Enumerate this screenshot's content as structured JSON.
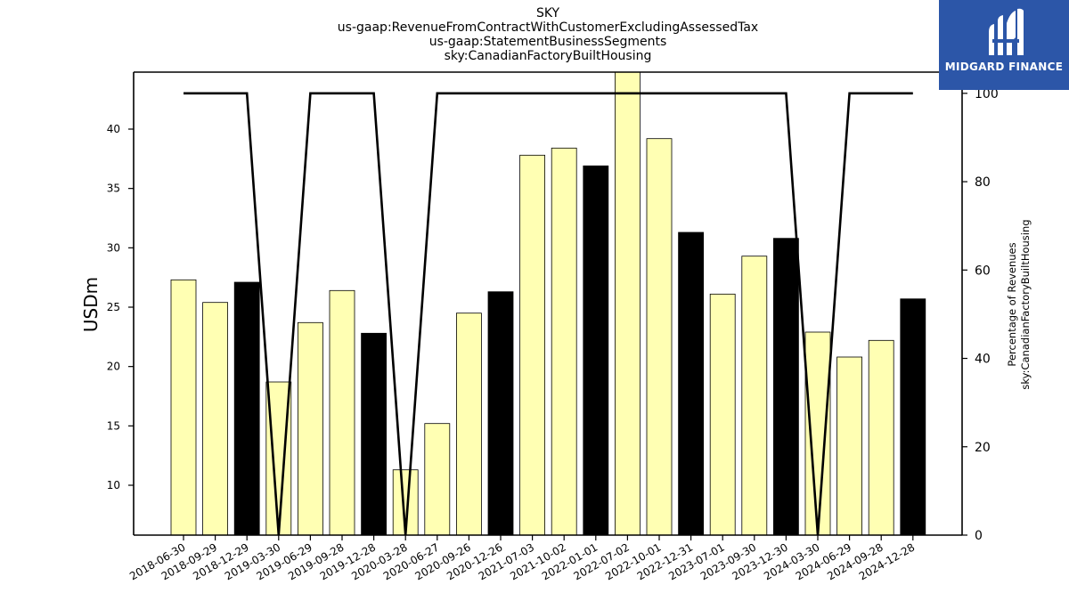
{
  "title_lines": [
    "SKY",
    "us-gaap:RevenueFromContractWithCustomerExcludingAssessedTax",
    "us-gaap:StatementBusinessSegments",
    "sky:CanadianFactoryBuiltHousing"
  ],
  "logo": {
    "text": "MIDGARD FINANCE",
    "background": "#2c56a8"
  },
  "chart_data": {
    "type": "bar",
    "categories": [
      "2018-06-30",
      "2018-09-29",
      "2018-12-29",
      "2019-03-30",
      "2019-06-29",
      "2019-09-28",
      "2019-12-28",
      "2020-03-28",
      "2020-06-27",
      "2020-09-26",
      "2020-12-26",
      "2021-07-03",
      "2021-10-02",
      "2022-01-01",
      "2022-07-02",
      "2022-10-01",
      "2022-12-31",
      "2023-07-01",
      "2023-09-30",
      "2023-12-30",
      "2024-03-30",
      "2024-06-29",
      "2024-09-28",
      "2024-12-28"
    ],
    "series": [
      {
        "type": "bar",
        "values": [
          27.3,
          25.4,
          27.1,
          18.7,
          23.7,
          26.4,
          22.8,
          11.3,
          15.2,
          24.5,
          26.3,
          37.8,
          38.4,
          36.9,
          44.8,
          39.2,
          31.3,
          26.1,
          29.3,
          30.8,
          22.9,
          20.8,
          22.2,
          25.7
        ],
        "highlight": [
          false,
          false,
          true,
          false,
          false,
          false,
          true,
          false,
          false,
          false,
          true,
          false,
          false,
          true,
          false,
          false,
          true,
          false,
          false,
          true,
          false,
          false,
          false,
          true
        ],
        "color": "#ffffb3",
        "highlight_color": "#000000"
      },
      {
        "type": "line",
        "axis": "right",
        "values": [
          100,
          100,
          100,
          0,
          100,
          100,
          100,
          0,
          100,
          100,
          100,
          100,
          100,
          100,
          100,
          100,
          100,
          100,
          100,
          100,
          0,
          100,
          100,
          100
        ],
        "color": "#000000"
      }
    ],
    "ylabel": "USDm",
    "ylabel_right": [
      "Percentage of Revenues",
      "sky:CanadianFactoryBuiltHousing"
    ],
    "ylim": [
      5.8,
      44.8
    ],
    "yticks": [
      10,
      15,
      20,
      25,
      30,
      35,
      40
    ],
    "ylim_right": [
      0,
      104.8
    ],
    "yticks_right": [
      0,
      20,
      40,
      60,
      80,
      100
    ],
    "grid": false,
    "legend": "none"
  }
}
